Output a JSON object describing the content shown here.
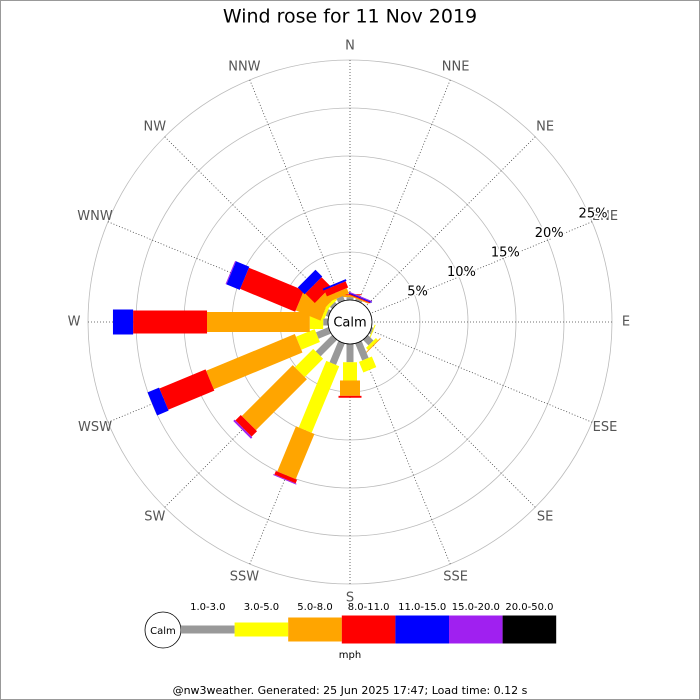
{
  "chart_data": {
    "type": "windrose",
    "title": "Wind rose for 11 Nov 2019",
    "directions": [
      "N",
      "NNE",
      "NE",
      "ENE",
      "E",
      "ESE",
      "SE",
      "SSE",
      "S",
      "SSW",
      "SW",
      "WSW",
      "W",
      "WNW",
      "NW",
      "NNW"
    ],
    "calm_label": "Calm",
    "rlim": [
      0,
      25
    ],
    "rticks": [
      {
        "value": 5,
        "label": "5%"
      },
      {
        "value": 10,
        "label": "10%"
      },
      {
        "value": 15,
        "label": "15%"
      },
      {
        "value": 20,
        "label": "20%"
      },
      {
        "value": 25,
        "label": "25%"
      }
    ],
    "series": [
      {
        "name": "1.0-3.0",
        "color": "#999999",
        "values": [
          0.3,
          0.2,
          0,
          0,
          0,
          0.2,
          0.8,
          1.9,
          1.9,
          2.4,
          2.4,
          1.4,
          0.5,
          0.3,
          0.3,
          0.5
        ]
      },
      {
        "name": "3.0-5.0",
        "color": "#ffff00",
        "values": [
          0,
          0,
          0,
          0,
          0,
          0.1,
          0.3,
          1.2,
          1.9,
          7.5,
          2.7,
          2.1,
          1.4,
          0.3,
          0.3,
          0
        ]
      },
      {
        "name": "5.0-8.0",
        "color": "#ffa500",
        "values": [
          0.2,
          0.1,
          0,
          0,
          0,
          0,
          0.1,
          0,
          1.6,
          5.1,
          7.5,
          10.0,
          10.7,
          2.8,
          1.1,
          0.6
        ]
      },
      {
        "name": "8.0-11.0",
        "color": "#ff0000",
        "values": [
          0.1,
          0.1,
          0,
          0,
          0,
          0,
          0,
          0,
          0.2,
          0.4,
          0.8,
          5.2,
          7.7,
          6.2,
          1.4,
          0.7
        ]
      },
      {
        "name": "11.0-15.0",
        "color": "#0000ff",
        "values": [
          0,
          0.1,
          0,
          0,
          0,
          0,
          0,
          0,
          0,
          0,
          0,
          1.3,
          2.1,
          1.5,
          1.0,
          0.2
        ]
      },
      {
        "name": "15.0-20.0",
        "color": "#a020f0",
        "values": [
          0,
          0.1,
          0,
          0,
          0,
          0,
          0,
          0,
          0,
          0.1,
          0.2,
          0,
          0,
          0.1,
          0,
          0
        ]
      },
      {
        "name": "20.0-50.0",
        "color": "#000000",
        "values": [
          0,
          0,
          0,
          0,
          0,
          0,
          0,
          0,
          0,
          0,
          0,
          0,
          0,
          0,
          0,
          0
        ]
      }
    ],
    "unit": "mph",
    "footer": "@nw3weather. Generated: 25 Jun 2025 17:47; Load time: 0.12 s"
  }
}
